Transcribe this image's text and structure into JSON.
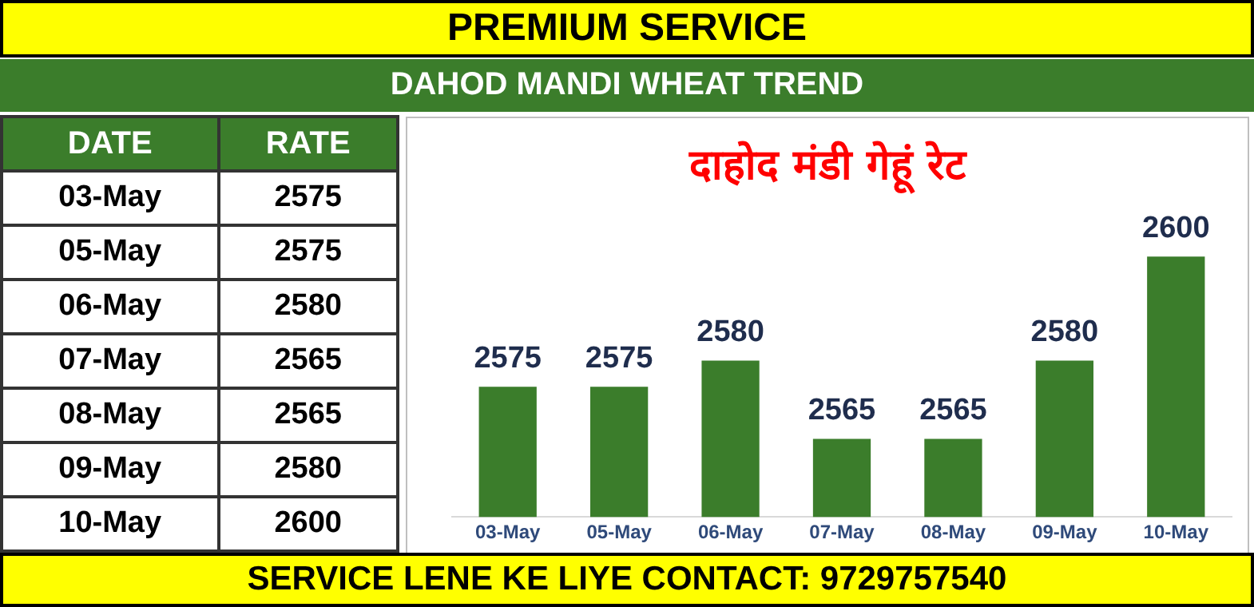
{
  "chart_data": {
    "type": "bar",
    "title": "PREMIUM SERVICE",
    "subtitle": "DAHOD MANDI WHEAT TREND",
    "annotations": [
      "दाहोद मंडी गेहूं रेट",
      "SERVICE LENE KE LIYE CONTACT: 9729757540",
      "DATE",
      "RATE"
    ],
    "categories": [
      "03-May",
      "05-May",
      "06-May",
      "07-May",
      "08-May",
      "09-May",
      "10-May"
    ],
    "values": [
      2575,
      2575,
      2580,
      2565,
      2565,
      2580,
      2600
    ],
    "value_labels": [
      "2575",
      "2575",
      "2580",
      "2565",
      "2565",
      "2580",
      "2600"
    ],
    "color": "#3b7d2b",
    "tick_labels": "x",
    "grid": false,
    "legend": false
  }
}
